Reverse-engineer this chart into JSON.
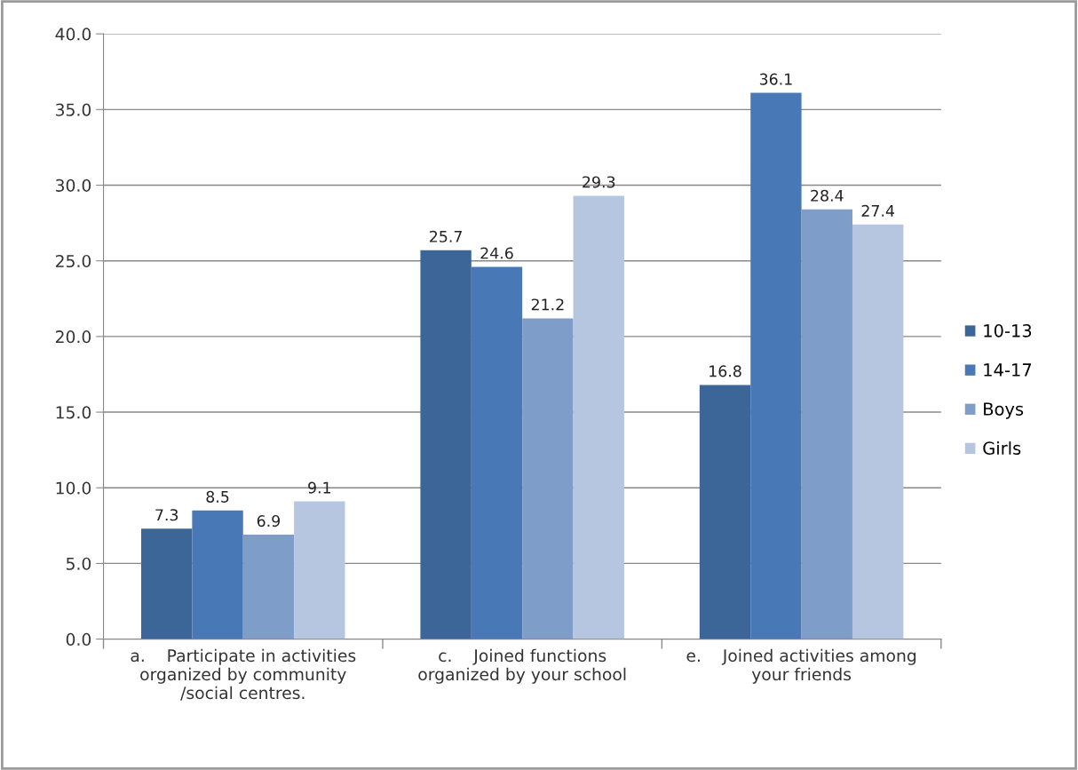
{
  "chart_data": {
    "type": "bar",
    "categories": [
      "a.    Participate in activities\norganized by community\n/social centres.",
      "c.    Joined functions\norganized by your school",
      "e.    Joined activities among\nyour friends"
    ],
    "series": [
      {
        "name": "10-13",
        "color": "#3c6698",
        "values": [
          7.3,
          25.7,
          16.8
        ]
      },
      {
        "name": "14-17",
        "color": "#4878b6",
        "values": [
          8.5,
          24.6,
          36.1
        ]
      },
      {
        "name": "Boys",
        "color": "#7f9dc9",
        "values": [
          6.9,
          21.2,
          28.4
        ]
      },
      {
        "name": "Girls",
        "color": "#b7c6e0",
        "values": [
          9.1,
          29.3,
          27.4
        ]
      }
    ],
    "ylim": [
      0,
      40
    ],
    "yticks": [
      {
        "value": 0,
        "label": "0.0"
      },
      {
        "value": 5,
        "label": "5.0"
      },
      {
        "value": 10,
        "label": "10.0"
      },
      {
        "value": 15,
        "label": "15.0"
      },
      {
        "value": 20,
        "label": "20.0"
      },
      {
        "value": 25,
        "label": "25.0"
      },
      {
        "value": 30,
        "label": "30.0"
      },
      {
        "value": 35,
        "label": "35.0"
      },
      {
        "value": 40,
        "label": "40.0"
      }
    ],
    "grid": "y",
    "legend": "right",
    "data_labels": true
  }
}
